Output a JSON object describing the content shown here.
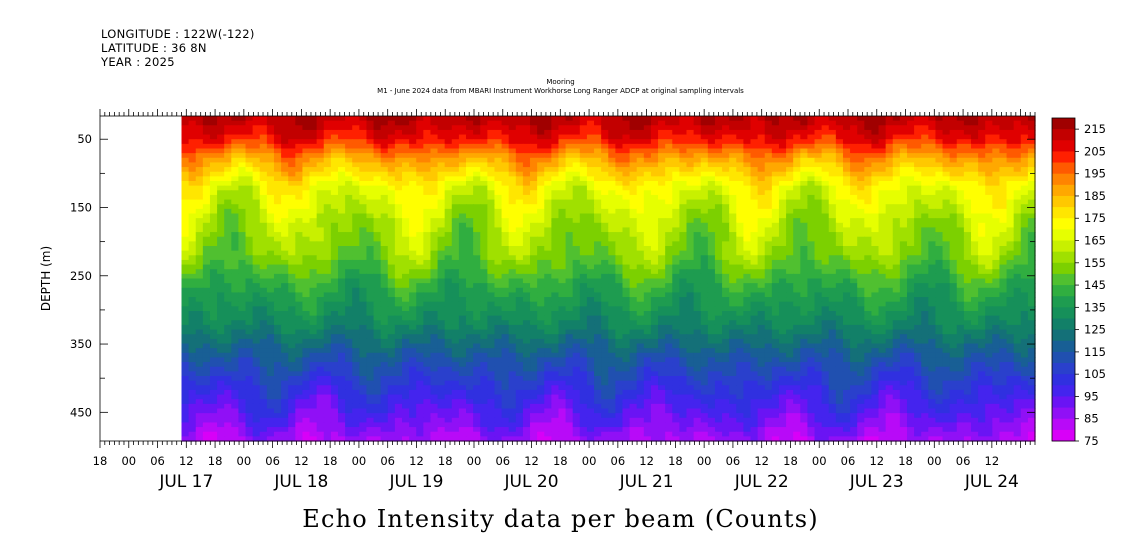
{
  "header": {
    "longitude": "LONGITUDE : 122W(-122)",
    "latitude": "LATITUDE : 36 8N",
    "year": "YEAR : 2025"
  },
  "subtitle": {
    "line1": "Mooring",
    "line2": "M1 - June 2024 data from MBARI Instrument Workhorse Long Ranger ADCP at original sampling intervals"
  },
  "chart_data": {
    "type": "heatmap",
    "title": "Echo Intensity data per beam (Counts)",
    "xlabel": "",
    "ylabel": "DEPTH (m)",
    "x_start_hours": -6,
    "x_end_hours": 189,
    "data_start_hours": 11,
    "x_hour_ticks": [
      "18",
      "00",
      "06",
      "12",
      "18",
      "00",
      "06",
      "12",
      "18",
      "00",
      "06",
      "12",
      "18",
      "00",
      "06",
      "12",
      "18",
      "00",
      "06",
      "12",
      "18",
      "00",
      "06",
      "12",
      "18",
      "00",
      "06",
      "12",
      "18",
      "00",
      "06",
      "12"
    ],
    "x_day_labels": [
      "JUL 17",
      "JUL 18",
      "JUL 19",
      "JUL 20",
      "JUL 21",
      "JUL 22",
      "JUL 23",
      "JUL 24"
    ],
    "ylim_depth": [
      16,
      492
    ],
    "y_ticks": [
      50,
      150,
      250,
      350,
      450
    ],
    "colorbar": {
      "levels": [
        75,
        80,
        85,
        90,
        95,
        100,
        105,
        110,
        115,
        120,
        125,
        130,
        135,
        140,
        145,
        150,
        155,
        160,
        165,
        170,
        175,
        180,
        185,
        190,
        195,
        200,
        205,
        210,
        215,
        220
      ],
      "labels": [
        "215",
        "205",
        "195",
        "185",
        "175",
        "165",
        "155",
        "145",
        "135",
        "125",
        "115",
        "105",
        "95",
        "85",
        "75"
      ]
    },
    "profile": [
      {
        "depth": 20,
        "value": 214
      },
      {
        "depth": 50,
        "value": 205
      },
      {
        "depth": 80,
        "value": 188
      },
      {
        "depth": 120,
        "value": 170
      },
      {
        "depth": 170,
        "value": 160
      },
      {
        "depth": 220,
        "value": 153
      },
      {
        "depth": 270,
        "value": 140
      },
      {
        "depth": 320,
        "value": 130
      },
      {
        "depth": 370,
        "value": 115
      },
      {
        "depth": 420,
        "value": 102
      },
      {
        "depth": 470,
        "value": 90
      },
      {
        "depth": 492,
        "value": 84
      }
    ]
  }
}
